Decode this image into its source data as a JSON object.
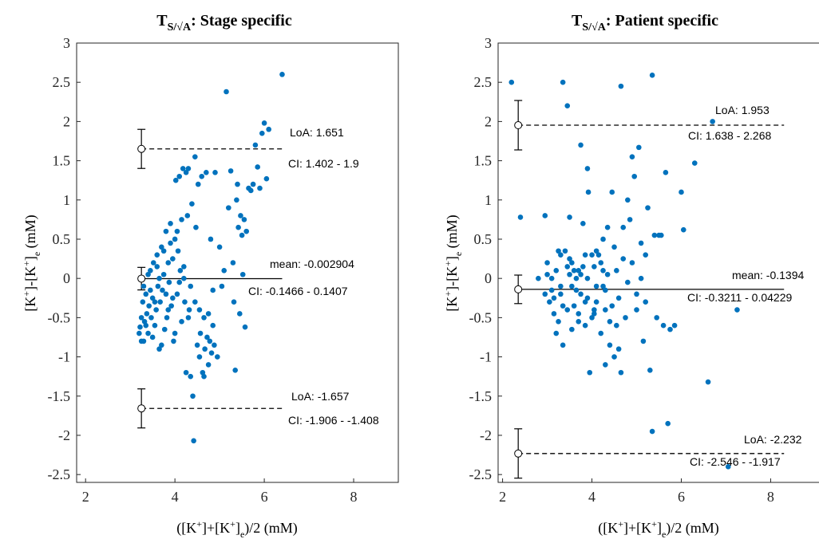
{
  "chart_data": [
    {
      "type": "scatter",
      "title_prefix": "T",
      "title_subscript": "S/√A",
      "title_suffix": ": Stage specific",
      "xlabel": "([K+]+[K+]e)/2 (mM)",
      "ylabel": "[K+]-[K+]e (mM)",
      "xlim": [
        1.8,
        9
      ],
      "ylim": [
        -2.6,
        3
      ],
      "xticks": [
        2,
        4,
        6,
        8
      ],
      "yticks": [
        3,
        2.5,
        2,
        1.5,
        1,
        0.5,
        0,
        -0.5,
        -1,
        -1.5,
        -2,
        -2.5
      ],
      "ytick_labels": [
        "3",
        "2.5",
        "2",
        "1.5",
        "1",
        "0.5",
        "0",
        "-0.5",
        "-1",
        "-1.5",
        "-2",
        "-2.5"
      ],
      "mean": -0.002904,
      "mean_ci": [
        -0.1466,
        0.1407
      ],
      "loa_upper": 1.651,
      "loa_upper_ci": [
        1.402,
        1.9
      ],
      "loa_lower": -1.657,
      "loa_lower_ci": [
        -1.906,
        -1.408
      ],
      "line_x": [
        3.25,
        6.4
      ],
      "labels": {
        "loa_upper": "LoA: 1.651",
        "loa_upper_ci": "CI: 1.402 - 1.9",
        "mean": "mean: -0.002904",
        "mean_ci": "CI: -0.1466 - 0.1407",
        "loa_lower": "LoA: -1.657",
        "loa_lower_ci": "CI: -1.906 - -1.408"
      },
      "points": [
        [
          3.2,
          -0.7
        ],
        [
          3.22,
          -0.62
        ],
        [
          3.25,
          -0.5
        ],
        [
          3.28,
          -0.3
        ],
        [
          3.3,
          -0.8
        ],
        [
          3.32,
          -0.55
        ],
        [
          3.35,
          -0.2
        ],
        [
          3.37,
          -0.45
        ],
        [
          3.4,
          -0.7
        ],
        [
          3.42,
          -0.35
        ],
        [
          3.45,
          0.1
        ],
        [
          3.47,
          -0.5
        ],
        [
          3.5,
          -0.25
        ],
        [
          3.52,
          0.2
        ],
        [
          3.55,
          -0.6
        ],
        [
          3.58,
          -0.4
        ],
        [
          3.6,
          0.3
        ],
        [
          3.62,
          -0.1
        ],
        [
          3.65,
          -0.9
        ],
        [
          3.67,
          -0.3
        ],
        [
          3.7,
          0.4
        ],
        [
          3.72,
          -0.15
        ],
        [
          3.75,
          0.05
        ],
        [
          3.77,
          -0.65
        ],
        [
          3.8,
          0.6
        ],
        [
          3.82,
          -0.5
        ],
        [
          3.85,
          0.2
        ],
        [
          3.87,
          -0.05
        ],
        [
          3.9,
          0.7
        ],
        [
          3.92,
          -0.35
        ],
        [
          3.95,
          0.25
        ],
        [
          3.97,
          -0.8
        ],
        [
          4.0,
          0.5
        ],
        [
          4.02,
          1.25
        ],
        [
          4.05,
          -0.2
        ],
        [
          4.07,
          0.35
        ],
        [
          4.1,
          1.3
        ],
        [
          4.12,
          0.1
        ],
        [
          4.15,
          -0.55
        ],
        [
          4.18,
          1.4
        ],
        [
          4.2,
          0.0
        ],
        [
          4.22,
          -0.3
        ],
        [
          4.25,
          -1.2
        ],
        [
          4.28,
          0.8
        ],
        [
          4.3,
          1.4
        ],
        [
          4.32,
          -0.4
        ],
        [
          4.35,
          -0.1
        ],
        [
          4.38,
          0.95
        ],
        [
          4.4,
          -1.5
        ],
        [
          4.42,
          -2.07
        ],
        [
          4.45,
          1.55
        ],
        [
          4.47,
          0.65
        ],
        [
          4.5,
          -0.85
        ],
        [
          4.52,
          1.2
        ],
        [
          4.55,
          -1.0
        ],
        [
          4.57,
          -0.7
        ],
        [
          4.6,
          1.3
        ],
        [
          4.62,
          -1.2
        ],
        [
          4.65,
          -0.5
        ],
        [
          4.67,
          -0.9
        ],
        [
          4.7,
          1.35
        ],
        [
          4.72,
          -0.75
        ],
        [
          4.75,
          -1.1
        ],
        [
          4.78,
          -0.8
        ],
        [
          4.8,
          0.5
        ],
        [
          4.82,
          -0.95
        ],
        [
          4.85,
          -0.6
        ],
        [
          4.88,
          -0.85
        ],
        [
          4.9,
          1.35
        ],
        [
          5.0,
          0.4
        ],
        [
          5.05,
          -0.1
        ],
        [
          5.1,
          0.1
        ],
        [
          5.15,
          2.38
        ],
        [
          5.2,
          0.9
        ],
        [
          5.25,
          1.37
        ],
        [
          5.3,
          0.2
        ],
        [
          5.32,
          -0.3
        ],
        [
          5.35,
          -1.17
        ],
        [
          5.38,
          1.0
        ],
        [
          5.4,
          1.2
        ],
        [
          5.42,
          0.65
        ],
        [
          5.45,
          -0.45
        ],
        [
          5.47,
          0.8
        ],
        [
          5.5,
          0.55
        ],
        [
          5.52,
          0.05
        ],
        [
          5.55,
          0.75
        ],
        [
          5.57,
          -0.62
        ],
        [
          5.6,
          0.6
        ],
        [
          5.65,
          1.15
        ],
        [
          5.7,
          1.12
        ],
        [
          5.75,
          1.2
        ],
        [
          5.8,
          1.7
        ],
        [
          5.85,
          1.42
        ],
        [
          5.9,
          1.15
        ],
        [
          5.95,
          1.85
        ],
        [
          6.0,
          1.98
        ],
        [
          6.05,
          1.27
        ],
        [
          6.1,
          1.9
        ],
        [
          6.4,
          2.6
        ],
        [
          3.3,
          -0.1
        ],
        [
          3.4,
          0.05
        ],
        [
          3.5,
          -0.75
        ],
        [
          3.6,
          0.15
        ],
        [
          3.7,
          -0.85
        ],
        [
          3.8,
          -0.2
        ],
        [
          3.9,
          0.45
        ],
        [
          4.0,
          -0.7
        ],
        [
          4.1,
          -0.05
        ],
        [
          4.2,
          0.15
        ],
        [
          4.3,
          -0.5
        ],
        [
          3.25,
          -0.8
        ],
        [
          3.35,
          -0.6
        ],
        [
          3.45,
          -0.15
        ],
        [
          3.55,
          -0.3
        ],
        [
          3.65,
          0.0
        ],
        [
          3.75,
          0.35
        ],
        [
          3.85,
          -0.4
        ],
        [
          3.95,
          -0.25
        ],
        [
          4.05,
          0.6
        ],
        [
          4.15,
          0.75
        ],
        [
          4.25,
          1.35
        ],
        [
          4.35,
          -1.25
        ],
        [
          4.45,
          -0.3
        ],
        [
          4.55,
          -0.4
        ],
        [
          4.65,
          -1.25
        ],
        [
          4.75,
          -0.45
        ],
        [
          4.85,
          -0.15
        ],
        [
          4.95,
          -1.0
        ]
      ]
    },
    {
      "type": "scatter",
      "title_prefix": "T",
      "title_subscript": "S/√A",
      "title_suffix": ": Patient specific",
      "xlabel": "([K+]+[K+]e)/2 (mM)",
      "ylabel": "[K+]-[K+]e (mM)",
      "xlim": [
        1.9,
        9.1
      ],
      "ylim": [
        -2.6,
        3
      ],
      "xticks": [
        2,
        4,
        6,
        8
      ],
      "yticks": [
        3,
        2.5,
        2,
        1.5,
        1,
        0.5,
        0,
        -0.5,
        -1,
        -1.5,
        -2,
        -2.5
      ],
      "ytick_labels": [
        "3",
        "2.5",
        "2",
        "1.5",
        "1",
        "0.5",
        "0",
        "-0.5",
        "-1",
        "-1.5",
        "-2",
        "-2.5"
      ],
      "mean": -0.1394,
      "mean_ci": [
        -0.3211,
        0.04229
      ],
      "loa_upper": 1.953,
      "loa_upper_ci": [
        1.638,
        2.268
      ],
      "loa_lower": -2.232,
      "loa_lower_ci": [
        -2.546,
        -1.917
      ],
      "line_x": [
        2.35,
        8.3
      ],
      "labels": {
        "loa_upper": "LoA: 1.953",
        "loa_upper_ci": "CI: 1.638 - 2.268",
        "mean": "mean: -0.1394",
        "mean_ci": "CI: -0.3211 - 0.04229",
        "loa_lower": "LoA: -2.232",
        "loa_lower_ci": "CI: -2.546 - -1.917"
      },
      "points": [
        [
          2.2,
          2.5
        ],
        [
          2.4,
          0.78
        ],
        [
          2.95,
          0.8
        ],
        [
          3.1,
          -0.15
        ],
        [
          3.2,
          -0.7
        ],
        [
          3.3,
          0.3
        ],
        [
          3.35,
          2.5
        ],
        [
          3.45,
          2.2
        ],
        [
          3.5,
          0.78
        ],
        [
          3.55,
          -0.1
        ],
        [
          3.6,
          0.1
        ],
        [
          3.7,
          0.1
        ],
        [
          3.75,
          1.7
        ],
        [
          3.8,
          0.7
        ],
        [
          3.85,
          -0.3
        ],
        [
          3.9,
          1.4
        ],
        [
          3.92,
          1.1
        ],
        [
          4.0,
          0.3
        ],
        [
          4.05,
          -0.4
        ],
        [
          4.1,
          -0.1
        ],
        [
          4.2,
          0.2
        ],
        [
          4.25,
          0.5
        ],
        [
          4.3,
          -0.15
        ],
        [
          4.35,
          0.65
        ],
        [
          4.4,
          -0.85
        ],
        [
          4.45,
          1.1
        ],
        [
          4.5,
          0.4
        ],
        [
          4.55,
          -0.6
        ],
        [
          4.6,
          -0.25
        ],
        [
          4.65,
          2.45
        ],
        [
          4.7,
          0.65
        ],
        [
          4.75,
          -0.5
        ],
        [
          4.8,
          1.0
        ],
        [
          4.85,
          0.75
        ],
        [
          4.9,
          1.55
        ],
        [
          4.95,
          1.3
        ],
        [
          5.0,
          -0.2
        ],
        [
          5.05,
          1.67
        ],
        [
          5.1,
          0.45
        ],
        [
          5.15,
          -0.8
        ],
        [
          5.2,
          0.3
        ],
        [
          5.25,
          0.9
        ],
        [
          5.3,
          -1.17
        ],
        [
          5.35,
          2.59
        ],
        [
          5.4,
          0.55
        ],
        [
          5.45,
          -0.5
        ],
        [
          5.5,
          0.55
        ],
        [
          5.55,
          0.55
        ],
        [
          5.6,
          -0.6
        ],
        [
          5.65,
          1.35
        ],
        [
          5.7,
          -1.85
        ],
        [
          5.75,
          -0.65
        ],
        [
          5.85,
          -0.6
        ],
        [
          6.0,
          1.1
        ],
        [
          6.05,
          0.62
        ],
        [
          6.3,
          1.47
        ],
        [
          6.6,
          -1.32
        ],
        [
          6.7,
          2.0
        ],
        [
          7.05,
          -2.4
        ],
        [
          7.25,
          -0.4
        ],
        [
          2.8,
          0.0
        ],
        [
          2.95,
          -0.2
        ],
        [
          3.0,
          0.05
        ],
        [
          3.05,
          -0.3
        ],
        [
          3.15,
          -0.45
        ],
        [
          3.2,
          0.1
        ],
        [
          3.25,
          -0.55
        ],
        [
          3.3,
          -0.2
        ],
        [
          3.35,
          -0.85
        ],
        [
          3.4,
          0.35
        ],
        [
          3.45,
          -0.4
        ],
        [
          3.5,
          0.05
        ],
        [
          3.55,
          -0.65
        ],
        [
          3.6,
          -0.35
        ],
        [
          3.65,
          0.0
        ],
        [
          3.7,
          -0.55
        ],
        [
          3.75,
          -0.2
        ],
        [
          3.8,
          0.15
        ],
        [
          3.85,
          -0.6
        ],
        [
          3.9,
          0.0
        ],
        [
          3.95,
          -1.2
        ],
        [
          4.0,
          -0.5
        ],
        [
          4.05,
          0.15
        ],
        [
          4.1,
          -0.3
        ],
        [
          4.15,
          0.3
        ],
        [
          4.2,
          -0.7
        ],
        [
          4.25,
          -0.1
        ],
        [
          4.3,
          -1.1
        ],
        [
          4.35,
          0.05
        ],
        [
          4.4,
          -0.55
        ],
        [
          4.45,
          -0.35
        ],
        [
          4.5,
          -1.0
        ],
        [
          4.55,
          0.1
        ],
        [
          4.6,
          -0.9
        ],
        [
          4.65,
          -1.2
        ],
        [
          4.7,
          0.25
        ],
        [
          4.8,
          -0.05
        ],
        [
          4.9,
          0.2
        ],
        [
          5.0,
          -0.4
        ],
        [
          5.1,
          0.0
        ],
        [
          5.2,
          -0.3
        ],
        [
          5.35,
          -1.95
        ],
        [
          3.0,
          0.2
        ],
        [
          3.1,
          0.0
        ],
        [
          3.3,
          -0.1
        ],
        [
          3.5,
          0.25
        ],
        [
          3.7,
          -0.45
        ],
        [
          3.9,
          -0.25
        ],
        [
          4.1,
          0.35
        ],
        [
          4.3,
          -0.4
        ],
        [
          3.25,
          0.35
        ],
        [
          3.45,
          0.15
        ],
        [
          3.65,
          -0.15
        ],
        [
          3.85,
          0.3
        ],
        [
          4.05,
          -0.45
        ],
        [
          4.25,
          0.1
        ],
        [
          3.15,
          -0.25
        ],
        [
          3.35,
          -0.35
        ],
        [
          3.55,
          0.2
        ],
        [
          3.75,
          0.05
        ]
      ]
    }
  ]
}
